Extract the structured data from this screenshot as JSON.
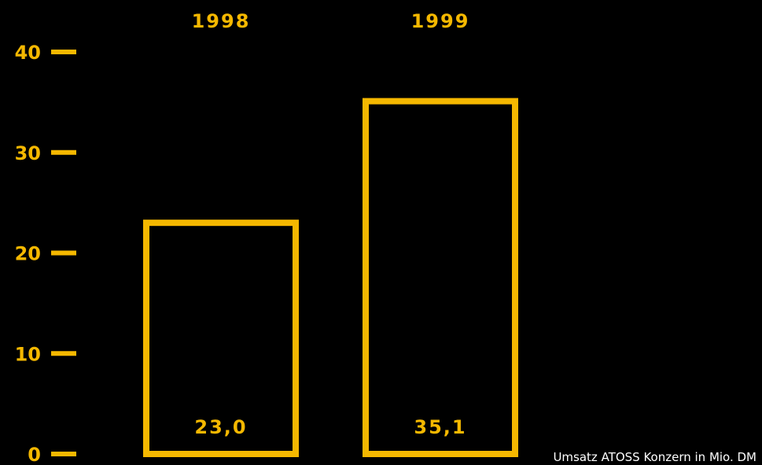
{
  "colors": {
    "background": "#000000",
    "accent": "#F5B800",
    "caption": "#FFFFFF"
  },
  "caption": "Umsatz ATOSS Konzern in Mio. DM",
  "chart_data": {
    "type": "bar",
    "categories": [
      "1998",
      "1999"
    ],
    "values": [
      23.0,
      35.1
    ],
    "value_labels": [
      "23,0",
      "35,1"
    ],
    "title": "",
    "xlabel": "",
    "ylabel": "",
    "ylim": [
      0,
      40
    ],
    "yticks": [
      0,
      10,
      20,
      30,
      40
    ],
    "grid": false,
    "legend": "none",
    "bar_style": "outline"
  }
}
